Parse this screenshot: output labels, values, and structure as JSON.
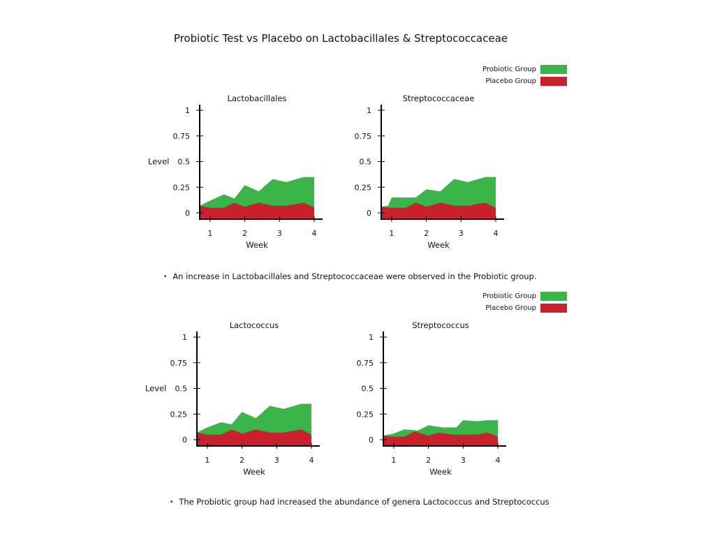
{
  "title": "Probiotic Test vs Placebo on Lactobacillales & Streptococcaceae",
  "colors": {
    "probiotic": "#3bb54a",
    "placebo": "#c9222e"
  },
  "legend_top": {
    "probiotic_label": "Probiotic Group",
    "placebo_label": "Placebo Group"
  },
  "legend_bottom": {
    "probiotic_label": "Probiotic Group",
    "placebo_label": "Placebo Group"
  },
  "bullet1": "An increase in Lactobacillales and Streptococcaceae were observed in the Probiotic group.",
  "bullet2": "The Probiotic group had increased the abundance of genera Lactococcus and Streptococcus",
  "chart_data": [
    {
      "type": "area",
      "title": "Lactobacillales",
      "xlabel": "Week",
      "ylabel": "Level",
      "xlim": [
        0.7,
        4
      ],
      "ylim": [
        0,
        1
      ],
      "xticks": [
        1,
        2,
        3,
        4
      ],
      "yticks": [
        0,
        0.25,
        0.5,
        0.75,
        1
      ],
      "ytick_labels": [
        "0",
        "0.25",
        "0.5",
        "0.75",
        "1"
      ],
      "series": [
        {
          "name": "Probiotic Group",
          "x": [
            0.7,
            1.0,
            1.4,
            1.7,
            2.0,
            2.4,
            2.8,
            3.2,
            3.7,
            4.0
          ],
          "values": [
            0.07,
            0.12,
            0.18,
            0.14,
            0.27,
            0.21,
            0.33,
            0.3,
            0.35,
            0.35
          ]
        },
        {
          "name": "Placebo Group",
          "x": [
            0.7,
            1.0,
            1.4,
            1.7,
            2.0,
            2.4,
            2.8,
            3.2,
            3.7,
            4.0
          ],
          "values": [
            0.07,
            0.05,
            0.05,
            0.1,
            0.06,
            0.1,
            0.07,
            0.07,
            0.1,
            0.05
          ]
        }
      ]
    },
    {
      "type": "area",
      "title": "Streptococcaceae",
      "xlabel": "Week",
      "ylabel": "",
      "xlim": [
        0.7,
        4
      ],
      "ylim": [
        0,
        1
      ],
      "xticks": [
        1,
        2,
        3,
        4
      ],
      "yticks": [
        0,
        0.25,
        0.5,
        0.75,
        1
      ],
      "ytick_labels": [
        "0",
        "0.25",
        "0.5",
        "0.75",
        "1"
      ],
      "series": [
        {
          "name": "Probiotic Group",
          "x": [
            0.7,
            0.9,
            1.0,
            1.4,
            1.7,
            2.0,
            2.4,
            2.8,
            3.2,
            3.7,
            4.0
          ],
          "values": [
            0.06,
            0.07,
            0.15,
            0.15,
            0.15,
            0.23,
            0.21,
            0.33,
            0.3,
            0.35,
            0.35
          ]
        },
        {
          "name": "Placebo Group",
          "x": [
            0.7,
            1.0,
            1.4,
            1.7,
            2.0,
            2.4,
            2.8,
            3.2,
            3.7,
            4.0
          ],
          "values": [
            0.06,
            0.05,
            0.05,
            0.1,
            0.06,
            0.1,
            0.07,
            0.07,
            0.1,
            0.05
          ]
        }
      ]
    },
    {
      "type": "area",
      "title": "Lactococcus",
      "xlabel": "Week",
      "ylabel": "Level",
      "xlim": [
        0.7,
        4
      ],
      "ylim": [
        0,
        1
      ],
      "xticks": [
        1,
        2,
        3,
        4
      ],
      "yticks": [
        0,
        0.25,
        0.5,
        0.75,
        1
      ],
      "ytick_labels": [
        "0",
        "0.25",
        "0.5",
        "0.75",
        "1"
      ],
      "series": [
        {
          "name": "Probiotic Group",
          "x": [
            0.7,
            1.0,
            1.4,
            1.7,
            2.0,
            2.4,
            2.8,
            3.2,
            3.7,
            4.0
          ],
          "values": [
            0.07,
            0.12,
            0.17,
            0.15,
            0.27,
            0.21,
            0.33,
            0.3,
            0.35,
            0.35
          ]
        },
        {
          "name": "Placebo Group",
          "x": [
            0.7,
            1.0,
            1.4,
            1.7,
            2.0,
            2.4,
            2.8,
            3.2,
            3.7,
            4.0
          ],
          "values": [
            0.07,
            0.05,
            0.05,
            0.1,
            0.06,
            0.1,
            0.07,
            0.07,
            0.1,
            0.05
          ]
        }
      ]
    },
    {
      "type": "area",
      "title": "Streptococcus",
      "xlabel": "Week",
      "ylabel": "",
      "xlim": [
        0.7,
        4
      ],
      "ylim": [
        0,
        1
      ],
      "xticks": [
        1,
        2,
        3,
        4
      ],
      "yticks": [
        0,
        0.25,
        0.5,
        0.75,
        1
      ],
      "ytick_labels": [
        "0",
        "0.25",
        "0.5",
        "0.75",
        "1"
      ],
      "series": [
        {
          "name": "Probiotic Group",
          "x": [
            0.7,
            1.0,
            1.3,
            1.7,
            2.0,
            2.4,
            2.8,
            3.0,
            3.4,
            3.7,
            4.0
          ],
          "values": [
            0.04,
            0.06,
            0.1,
            0.09,
            0.14,
            0.12,
            0.12,
            0.19,
            0.18,
            0.19,
            0.19
          ]
        },
        {
          "name": "Placebo Group",
          "x": [
            0.7,
            1.0,
            1.3,
            1.6,
            2.0,
            2.3,
            2.7,
            3.0,
            3.4,
            3.7,
            4.0
          ],
          "values": [
            0.04,
            0.03,
            0.03,
            0.08,
            0.04,
            0.07,
            0.05,
            0.05,
            0.05,
            0.07,
            0.03
          ]
        }
      ]
    }
  ]
}
